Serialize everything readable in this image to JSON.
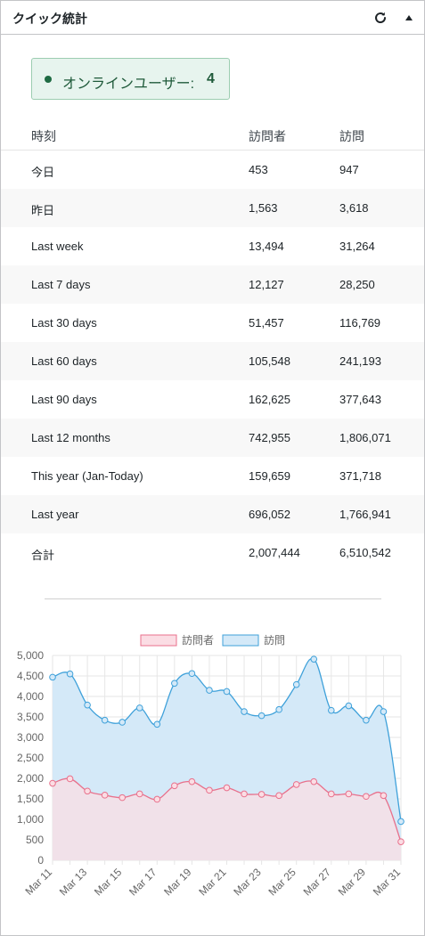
{
  "widget": {
    "title": "クイック統計"
  },
  "icons": {
    "refresh": "refresh-icon",
    "toggle": "triangle-up-icon"
  },
  "online": {
    "label": "オンラインユーザー:",
    "count": "4"
  },
  "table": {
    "headers": [
      "時刻",
      "訪問者",
      "訪問"
    ],
    "rows": [
      [
        "今日",
        "453",
        "947"
      ],
      [
        "昨日",
        "1,563",
        "3,618"
      ],
      [
        "Last week",
        "13,494",
        "31,264"
      ],
      [
        "Last 7 days",
        "12,127",
        "28,250"
      ],
      [
        "Last 30 days",
        "51,457",
        "116,769"
      ],
      [
        "Last 60 days",
        "105,548",
        "241,193"
      ],
      [
        "Last 90 days",
        "162,625",
        "377,643"
      ],
      [
        "Last 12 months",
        "742,955",
        "1,806,071"
      ],
      [
        "This year (Jan-Today)",
        "159,659",
        "371,718"
      ],
      [
        "Last year",
        "696,052",
        "1,766,941"
      ],
      [
        "合計",
        "2,007,444",
        "6,510,542"
      ]
    ]
  },
  "chart_data": {
    "type": "line",
    "x": [
      "Mar 11",
      "Mar 12",
      "Mar 13",
      "Mar 14",
      "Mar 15",
      "Mar 16",
      "Mar 17",
      "Mar 18",
      "Mar 19",
      "Mar 20",
      "Mar 21",
      "Mar 22",
      "Mar 23",
      "Mar 24",
      "Mar 25",
      "Mar 26",
      "Mar 27",
      "Mar 28",
      "Mar 29",
      "Mar 30",
      "Mar 31"
    ],
    "x_tick_labels": [
      "Mar 11",
      "Mar 13",
      "Mar 15",
      "Mar 17",
      "Mar 19",
      "Mar 21",
      "Mar 23",
      "Mar 25",
      "Mar 27",
      "Mar 29",
      "Mar 31"
    ],
    "ylim": [
      0,
      5000
    ],
    "y_ticks": [
      0,
      500,
      1000,
      1500,
      2000,
      2500,
      3000,
      3500,
      4000,
      4500,
      5000
    ],
    "y_tick_labels": [
      "0",
      "500",
      "1,000",
      "1,500",
      "2,000",
      "2,500",
      "3,000",
      "3,500",
      "4,000",
      "4,500",
      "5,000"
    ],
    "legend_position": "top",
    "grid": true,
    "series": [
      {
        "name": "訪問者",
        "color": "#e8718c",
        "fill": "#fbdde4",
        "values": [
          1880,
          1990,
          1690,
          1590,
          1530,
          1620,
          1490,
          1820,
          1920,
          1710,
          1770,
          1620,
          1610,
          1580,
          1850,
          1920,
          1620,
          1620,
          1560,
          1580,
          453
        ]
      },
      {
        "name": "訪問",
        "color": "#3fa1da",
        "fill": "#d4e9f8",
        "values": [
          4470,
          4550,
          3790,
          3420,
          3370,
          3720,
          3320,
          4320,
          4560,
          4150,
          4120,
          3630,
          3530,
          3680,
          4290,
          4910,
          3660,
          3770,
          3420,
          3630,
          947
        ]
      }
    ]
  }
}
